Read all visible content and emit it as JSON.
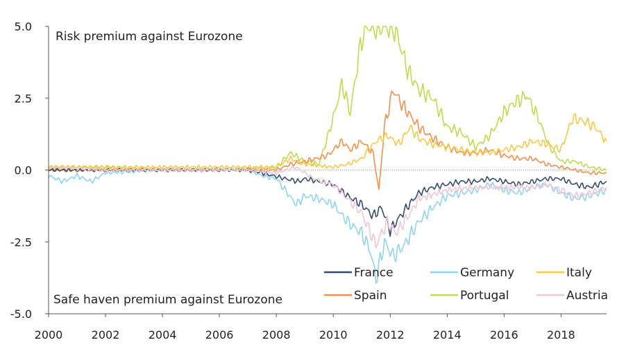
{
  "chart_data": {
    "type": "line",
    "title": "",
    "xlabel": "",
    "ylabel": "",
    "xlim": [
      2000,
      2019.6
    ],
    "ylim": [
      -5,
      5
    ],
    "x_ticks": [
      "2000",
      "2002",
      "2004",
      "2006",
      "2008",
      "2010",
      "2012",
      "2014",
      "2016",
      "2018"
    ],
    "y_ticks": [
      "5.0",
      "2.5",
      "0.0",
      "-2.5",
      "-5.0"
    ],
    "grid": false,
    "zero_line": "dotted",
    "legend_placement": "bottom-right",
    "annotations": {
      "top": "Risk premium against Eurozone",
      "bottom": "Safe haven premium against Eurozone"
    },
    "series": [
      {
        "name": "Portugal",
        "color": "#c3d94e",
        "x": [
          2000,
          2002,
          2004,
          2006,
          2008,
          2008.5,
          2009,
          2009.5,
          2010,
          2010.3,
          2010.6,
          2010.9,
          2011.1,
          2011.5,
          2011.9,
          2012.1,
          2012.3,
          2012.6,
          2013,
          2013.5,
          2014,
          2014.5,
          2015,
          2015.5,
          2016,
          2016.3,
          2016.8,
          2017.2,
          2017.6,
          2018,
          2018.5,
          2019,
          2019.6
        ],
        "y": [
          0.1,
          0.1,
          0.0,
          0.0,
          0.1,
          0.6,
          0.3,
          0.2,
          1.8,
          3.0,
          2.0,
          4.0,
          5.0,
          5.0,
          5.0,
          5.0,
          4.5,
          3.5,
          2.8,
          2.5,
          1.5,
          1.3,
          0.8,
          1.2,
          2.0,
          2.3,
          2.6,
          1.8,
          0.8,
          0.3,
          0.3,
          0.1,
          0.0
        ]
      },
      {
        "name": "Spain",
        "color": "#f58f4a",
        "x": [
          2000,
          2002,
          2004,
          2006,
          2008,
          2008.5,
          2009,
          2009.8,
          2010.3,
          2010.6,
          2011,
          2011.4,
          2011.6,
          2011.8,
          2012.1,
          2012.4,
          2012.7,
          2013,
          2013.5,
          2014,
          2014.5,
          2015,
          2015.5,
          2016,
          2016.5,
          2017,
          2017.5,
          2018,
          2018.5,
          2019,
          2019.6
        ],
        "y": [
          0.0,
          0.0,
          0.0,
          0.0,
          0.0,
          0.2,
          0.3,
          0.5,
          1.0,
          0.7,
          1.0,
          0.6,
          -0.7,
          1.5,
          2.8,
          2.3,
          1.9,
          1.5,
          1.1,
          0.8,
          0.6,
          0.6,
          0.7,
          0.5,
          0.4,
          0.4,
          0.2,
          0.1,
          0.0,
          -0.1,
          -0.1
        ]
      },
      {
        "name": "Italy",
        "color": "#f7c948",
        "x": [
          2000,
          2002,
          2004,
          2006,
          2008,
          2008.5,
          2009,
          2010,
          2010.5,
          2011,
          2011.5,
          2011.9,
          2012.3,
          2012.7,
          2013,
          2013.5,
          2014,
          2014.5,
          2015,
          2015.5,
          2016,
          2016.5,
          2017,
          2017.5,
          2018,
          2018.4,
          2018.8,
          2019.2,
          2019.6
        ],
        "y": [
          0.1,
          0.1,
          0.1,
          0.1,
          0.1,
          0.4,
          0.2,
          0.1,
          0.2,
          0.4,
          1.0,
          1.2,
          0.9,
          1.5,
          1.1,
          0.9,
          0.8,
          0.7,
          0.6,
          0.6,
          0.7,
          0.8,
          1.0,
          0.9,
          0.7,
          1.8,
          1.7,
          1.5,
          1.0
        ]
      },
      {
        "name": "Germany",
        "color": "#8fd3f5",
        "x": [
          2000,
          2000.5,
          2001,
          2001.5,
          2002,
          2004,
          2006,
          2007,
          2007.5,
          2008,
          2008.7,
          2009,
          2009.5,
          2010,
          2010.5,
          2011,
          2011.3,
          2011.5,
          2011.8,
          2012.1,
          2012.5,
          2013,
          2013.5,
          2014,
          2014.5,
          2015,
          2015.5,
          2016,
          2016.5,
          2017,
          2017.5,
          2018,
          2018.5,
          2019,
          2019.6
        ],
        "y": [
          -0.2,
          -0.4,
          -0.2,
          -0.4,
          -0.1,
          0.0,
          0.0,
          0.0,
          -0.2,
          -0.3,
          -1.2,
          -0.9,
          -1.0,
          -1.2,
          -1.8,
          -2.2,
          -2.8,
          -3.8,
          -2.5,
          -3.0,
          -2.6,
          -1.8,
          -1.3,
          -0.9,
          -0.8,
          -0.7,
          -0.5,
          -0.7,
          -0.8,
          -0.6,
          -0.5,
          -0.8,
          -1.0,
          -0.9,
          -0.7
        ]
      },
      {
        "name": "France",
        "color": "#344a6e",
        "x": [
          2000,
          2002,
          2004,
          2006,
          2007,
          2007.5,
          2008.3,
          2008.8,
          2009,
          2009.5,
          2010,
          2010.5,
          2011,
          2011.4,
          2011.7,
          2012,
          2012.5,
          2013,
          2013.5,
          2014,
          2014.5,
          2015,
          2015.5,
          2016,
          2016.5,
          2017,
          2017.5,
          2018,
          2018.5,
          2019,
          2019.6
        ],
        "y": [
          0.0,
          0.0,
          0.0,
          0.0,
          0.0,
          -0.1,
          -0.3,
          -0.4,
          -0.3,
          -0.4,
          -0.5,
          -0.9,
          -1.2,
          -1.6,
          -1.3,
          -2.1,
          -1.4,
          -0.8,
          -0.6,
          -0.5,
          -0.4,
          -0.4,
          -0.3,
          -0.4,
          -0.5,
          -0.4,
          -0.3,
          -0.3,
          -0.5,
          -0.6,
          -0.4
        ]
      },
      {
        "name": "Austria",
        "color": "#f0c6d6",
        "x": [
          2000,
          2002,
          2004,
          2006,
          2007,
          2008,
          2008.7,
          2009.3,
          2010,
          2010.5,
          2011,
          2011.5,
          2011.9,
          2012.2,
          2012.7,
          2013,
          2014,
          2015,
          2016,
          2017,
          2017.5,
          2018,
          2018.5,
          2019,
          2019.6
        ],
        "y": [
          0.1,
          0.0,
          0.0,
          0.0,
          0.0,
          -0.1,
          0.1,
          -0.3,
          -0.5,
          -1.0,
          -1.5,
          -2.6,
          -1.8,
          -2.2,
          -1.5,
          -1.0,
          -0.7,
          -0.6,
          -0.6,
          -0.6,
          -0.5,
          -0.7,
          -0.9,
          -0.8,
          -0.6
        ]
      }
    ],
    "legend_order": [
      "France",
      "Germany",
      "Italy",
      "Spain",
      "Portugal",
      "Austria"
    ]
  }
}
